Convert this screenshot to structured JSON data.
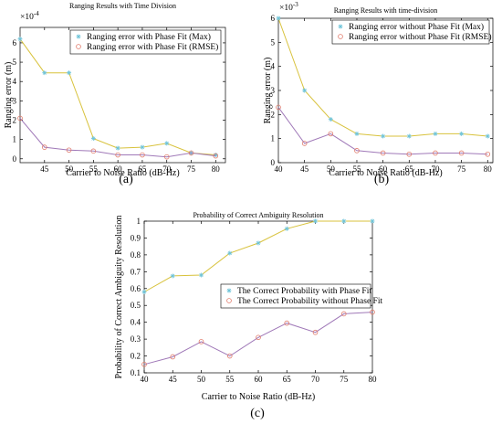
{
  "colors": {
    "max": "#d8c23c",
    "rmse": "#a079b8",
    "marker_star": "#6fc4d9",
    "marker_circle": "#e07a6a",
    "axis": "#000000"
  },
  "captions": [
    "(a)",
    "(b)",
    "(c)"
  ],
  "chart_data": [
    {
      "type": "line",
      "title": "Ranging Results with Time Division",
      "xlabel": "Carrier to Noise Ratio (dB-Hz)",
      "ylabel": "Ranging error (m)",
      "multiplier": "×10",
      "multiplier_exp": "-4",
      "scale": 0.0001,
      "x": [
        40,
        45,
        50,
        55,
        60,
        65,
        70,
        75,
        80
      ],
      "xticks": [
        45,
        50,
        55,
        60,
        65,
        70,
        75,
        80
      ],
      "xlim": [
        40,
        82
      ],
      "ylim": [
        -0.2,
        6.8
      ],
      "yticks": [
        0,
        1,
        2,
        3,
        4,
        5,
        6
      ],
      "grid": false,
      "legend": "top-right",
      "series": [
        {
          "name": "Ranging error with Phase Fit (Max)",
          "marker": "star",
          "values": [
            6.2,
            4.45,
            4.45,
            1.05,
            0.55,
            0.6,
            0.8,
            0.3,
            0.2
          ]
        },
        {
          "name": "Ranging error with Phase Fit (RMSE)",
          "marker": "circle",
          "values": [
            2.1,
            0.6,
            0.45,
            0.4,
            0.2,
            0.2,
            0.1,
            0.3,
            0.15
          ]
        }
      ]
    },
    {
      "type": "line",
      "title": "Ranging Results with time-division",
      "xlabel": "Carrier to Noise Ratio (dB-Hz)",
      "ylabel": "Ranging error (m)",
      "multiplier": "×10",
      "multiplier_exp": "-3",
      "scale": 0.001,
      "x": [
        40,
        45,
        50,
        55,
        60,
        65,
        70,
        75,
        80
      ],
      "xticks": [
        40,
        45,
        50,
        55,
        60,
        65,
        70,
        75,
        80
      ],
      "xlim": [
        40,
        81
      ],
      "ylim": [
        0,
        6
      ],
      "yticks": [
        0,
        1,
        2,
        3,
        4,
        5,
        6
      ],
      "grid": false,
      "legend": "top-right",
      "series": [
        {
          "name": "Ranging error without Phase Fit (Max)",
          "marker": "star",
          "values": [
            6.0,
            3.0,
            1.8,
            1.2,
            1.1,
            1.1,
            1.2,
            1.2,
            1.1
          ]
        },
        {
          "name": "Ranging error without Phase Fit (RMSE)",
          "marker": "circle",
          "values": [
            2.3,
            0.8,
            1.2,
            0.5,
            0.4,
            0.35,
            0.4,
            0.4,
            0.35
          ]
        }
      ]
    },
    {
      "type": "line",
      "title": "Probability of Correct Ambiguity Resolution",
      "xlabel": "Carrier to Noise Ratio (dB-Hz)",
      "ylabel": "Probability of Correct Ambiguity Resolution",
      "multiplier": "",
      "multiplier_exp": "",
      "scale": 1,
      "x": [
        40,
        45,
        50,
        55,
        60,
        65,
        70,
        75,
        80
      ],
      "xticks": [
        40,
        45,
        50,
        55,
        60,
        65,
        70,
        75,
        80
      ],
      "xlim": [
        40,
        80
      ],
      "ylim": [
        0.1,
        1
      ],
      "yticks": [
        0.1,
        0.2,
        0.3,
        0.4,
        0.5,
        0.6,
        0.7,
        0.8,
        0.9,
        1
      ],
      "grid": false,
      "legend": "center-right",
      "series": [
        {
          "name": "The Correct Probability with Phase Fit",
          "marker": "star",
          "values": [
            0.58,
            0.675,
            0.68,
            0.81,
            0.87,
            0.955,
            1.0,
            1.0,
            1.0
          ]
        },
        {
          "name": "The Correct Probability without Phase Fit",
          "marker": "circle",
          "values": [
            0.15,
            0.195,
            0.285,
            0.2,
            0.31,
            0.395,
            0.34,
            0.45,
            0.46
          ]
        }
      ]
    }
  ]
}
